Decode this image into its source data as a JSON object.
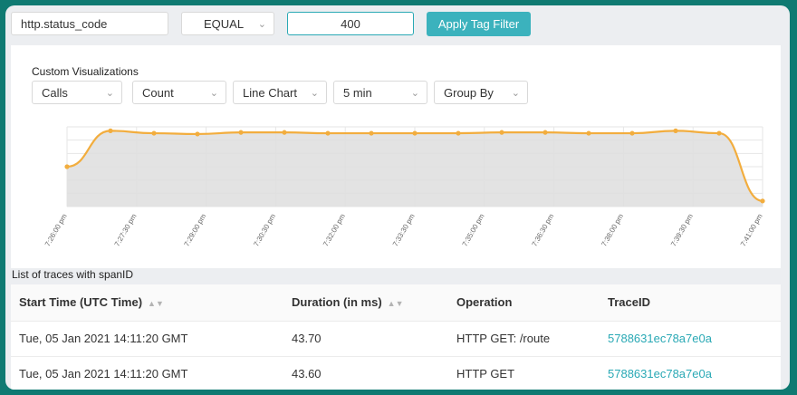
{
  "filter": {
    "tag_key": "http.status_code",
    "operator": "EQUAL",
    "value": "400",
    "apply_label": "Apply Tag Filter"
  },
  "visualization": {
    "title": "Custom Visualizations",
    "entity": "Calls",
    "aggregation": "Count",
    "view": "Line Chart",
    "interval": "5 min",
    "group_by": "Group By"
  },
  "chart_data": {
    "type": "line",
    "title": "",
    "xlabel": "",
    "ylabel": "",
    "grid": true,
    "ticks": [
      "7:26:00 pm",
      "7:27:30 pm",
      "7:29:00 pm",
      "7:30:30 pm",
      "7:32:00 pm",
      "7:33:30 pm",
      "7:35:00 pm",
      "7:36:30 pm",
      "7:38:00 pm",
      "7:39:30 pm",
      "7:41:00 pm"
    ],
    "series": [
      {
        "values": [
          0.5,
          0.95,
          0.92,
          0.91,
          0.93,
          0.93,
          0.92,
          0.92,
          0.92,
          0.92,
          0.93,
          0.93,
          0.92,
          0.92,
          0.95,
          0.92,
          0.07
        ],
        "color": "#f2ad3e"
      }
    ]
  },
  "traces": {
    "title": "List of traces with spanID",
    "columns": [
      "Start Time (UTC Time)",
      "Duration (in ms)",
      "Operation",
      "TraceID"
    ],
    "rows": [
      [
        "Tue, 05 Jan 2021 14:11:20 GMT",
        "43.70",
        "HTTP GET: /route",
        "5788631ec78a7e0a"
      ],
      [
        "Tue, 05 Jan 2021 14:11:20 GMT",
        "43.60",
        "HTTP GET",
        "5788631ec78a7e0a"
      ]
    ]
  }
}
